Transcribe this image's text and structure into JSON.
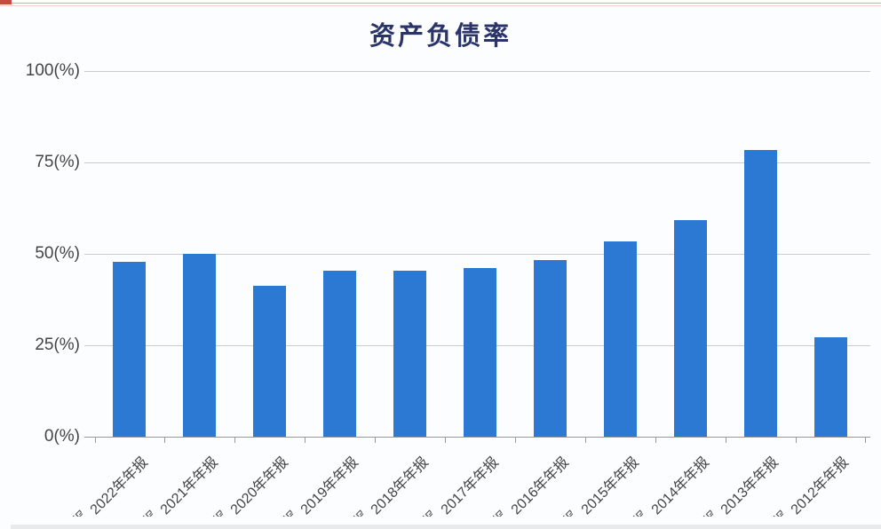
{
  "page": {
    "background": "#fbfdfe",
    "artifacts": {
      "top_line_color": "#eaa3a3",
      "top_line_faint_color": "#f5cfcf",
      "top_corner_color": "#c7493f",
      "bottom_band_color": "#e8eaec",
      "cropped_fragment_glyph": "报"
    }
  },
  "chart_data": {
    "type": "bar",
    "title": "资产负债率",
    "categories": [
      "2022年年报",
      "2021年年报",
      "2020年年报",
      "2019年年报",
      "2018年年报",
      "2017年年报",
      "2016年年报",
      "2015年年报",
      "2014年年报",
      "2013年年报",
      "2012年年报"
    ],
    "values": [
      47.8,
      50.1,
      41.3,
      45.5,
      45.3,
      46.2,
      48.4,
      53.3,
      59.2,
      78.3,
      27.3
    ],
    "unit": "%",
    "xlabel": "",
    "ylabel": "",
    "ylim": [
      0,
      100
    ],
    "y_ticks": [
      {
        "label": "100(%)",
        "value": 100
      },
      {
        "label": "75(%)",
        "value": 75
      },
      {
        "label": "50(%)",
        "value": 50
      },
      {
        "label": "25(%)",
        "value": 25
      },
      {
        "label": "0(%)",
        "value": 0
      }
    ],
    "grid": true,
    "legend_position": "none",
    "colors": {
      "bar": "#2b79d3",
      "title": "#2b3468",
      "axis_label": "#454545",
      "grid_line": "#cccccc",
      "axis_line": "#999999",
      "tick": "#999999"
    }
  }
}
